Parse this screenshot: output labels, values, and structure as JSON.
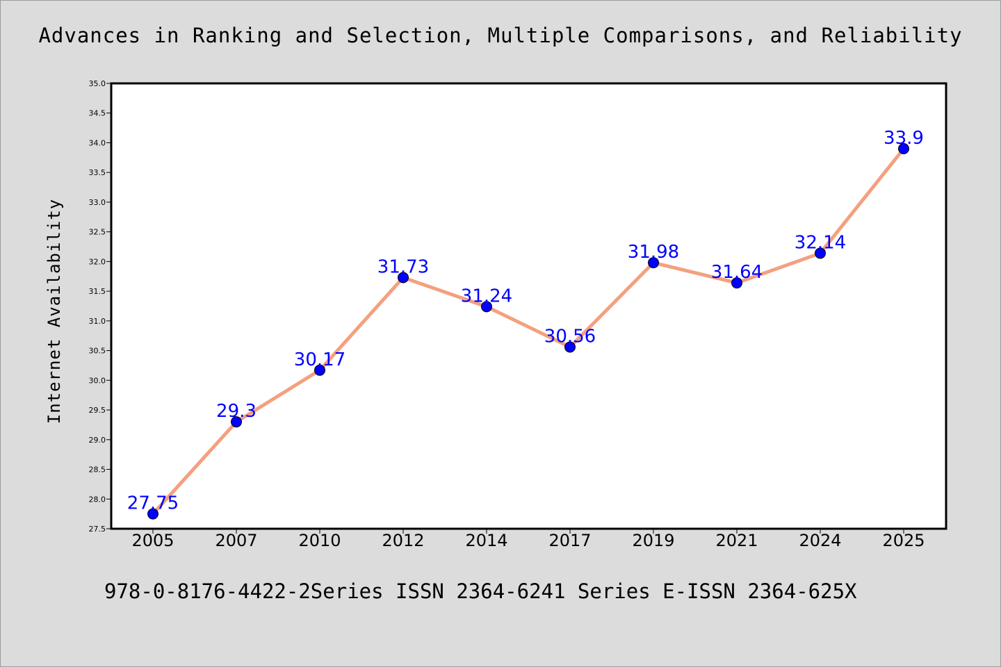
{
  "chart_data": {
    "type": "line",
    "title": "Advances in Ranking and Selection, Multiple Comparisons, and Reliability",
    "xlabel": "",
    "ylabel": "Internet Availability",
    "categories": [
      "2005",
      "2007",
      "2010",
      "2012",
      "2014",
      "2017",
      "2019",
      "2021",
      "2024",
      "2025"
    ],
    "series": [
      {
        "values": [
          27.75,
          29.3,
          30.17,
          31.73,
          31.24,
          30.56,
          31.98,
          31.64,
          32.14,
          33.9
        ],
        "labels": [
          "27.75",
          "29.3",
          "30.17",
          "31.73",
          "31.24",
          "30.56",
          "31.98",
          "31.64",
          "32.14",
          "33.9"
        ]
      }
    ],
    "ylim": [
      27.5,
      35.0
    ],
    "yticks": [
      "27.5",
      "28.0",
      "28.5",
      "29.0",
      "29.5",
      "30.0",
      "30.5",
      "31.0",
      "31.5",
      "32.0",
      "32.5",
      "33.0",
      "33.5",
      "34.0",
      "34.5",
      "35.0"
    ],
    "grid": false,
    "legend": "none",
    "colors": {
      "line": "#f4a07f",
      "marker": "#0000ff",
      "label": "#0000ff",
      "background": "#dcdcdc",
      "plot_background": "#ffffff"
    }
  },
  "footer": "978-0-8176-4422-2Series ISSN 2364-6241 Series E-ISSN 2364-625X"
}
